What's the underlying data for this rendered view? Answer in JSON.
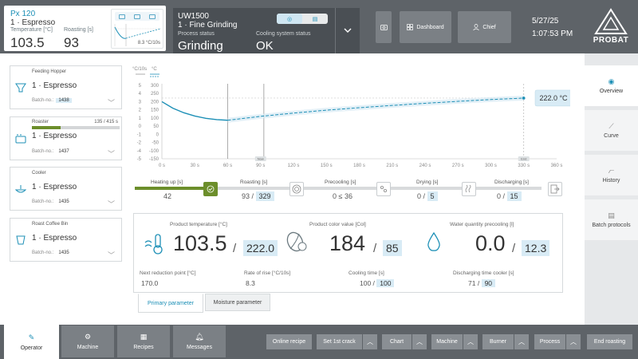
{
  "machine_card": {
    "title": "Px 120",
    "recipe": "1 · Espresso",
    "temp_label": "Temperature [°C]",
    "roast_label": "Roasting [s]",
    "temp_value": "103.5",
    "roast_value": "93",
    "mini_chart_label": "8.3 °C/10s"
  },
  "process_card": {
    "title": "UW1500",
    "subtitle": "1 · Fine Grinding",
    "status_label": "Process status",
    "cooling_label": "Cooling system status",
    "status_value": "Grinding",
    "cooling_value": "OK"
  },
  "topbar": {
    "dashboard": "Dashboard",
    "chief": "Chief",
    "date": "5/27/25",
    "time": "1:07:53 PM",
    "logo": "PROBAT"
  },
  "side_cards": {
    "hopper": {
      "title": "Feeding Hopper",
      "name": "1 · Espresso",
      "batch_label": "Batch-no.:",
      "batch": "1438"
    },
    "roaster": {
      "title": "Roaster",
      "progress_text": "135 / 415 s",
      "progress": 0.325,
      "name": "1 · Espresso",
      "batch_label": "Batch-no.:",
      "batch": "1437"
    },
    "cooler": {
      "title": "Cooler",
      "name": "1 · Espresso",
      "batch_label": "Batch-no.:",
      "batch": "1435"
    },
    "bin": {
      "title": "Roast Coffee Bin",
      "name": "1 · Espresso",
      "batch_label": "Batch-no.:",
      "batch": "1435"
    }
  },
  "chart_data": {
    "type": "line",
    "y_left_label": "°C/10s",
    "y_right_label": "°C",
    "y_left_ticks": [
      "5",
      "4",
      "3",
      "2",
      "1",
      "0",
      "-1",
      "-2",
      "-4",
      "-5"
    ],
    "y_right_ticks": [
      "300",
      "250",
      "200",
      "150",
      "100",
      "50",
      "0",
      "-50",
      "-100",
      "-150"
    ],
    "ylim": [
      -150,
      300
    ],
    "xlim": [
      0,
      360
    ],
    "x_ticks": [
      0,
      30,
      60,
      90,
      120,
      150,
      180,
      210,
      240,
      270,
      300,
      330,
      360
    ],
    "x_tick_labels": [
      "0 s",
      "30 s",
      "60 s",
      "90 s",
      "120 s",
      "150 s",
      "180 s",
      "210 s",
      "240 s",
      "270 s",
      "300 s",
      "330 s",
      "360 s"
    ],
    "x_marker_labels": [
      "Now",
      "End"
    ],
    "x_markers": [
      90,
      330
    ],
    "vertical_lines": [
      60,
      93
    ],
    "actual": {
      "x": [
        0,
        10,
        20,
        30,
        40,
        50,
        60
      ],
      "y": [
        200,
        160,
        132,
        112,
        98,
        90,
        86
      ]
    },
    "planned": {
      "x": [
        60,
        90,
        120,
        150,
        180,
        210,
        240,
        270,
        300,
        330
      ],
      "y": [
        86,
        110,
        130,
        148,
        163,
        177,
        190,
        202,
        213,
        222
      ]
    },
    "target_label": "222.0 °C",
    "target_value": 222
  },
  "steps": {
    "heating": {
      "label": "Heating up [s]",
      "value": "42"
    },
    "roasting": {
      "label": "Roasting [s]",
      "value": "93 /",
      "target": "329"
    },
    "precooling": {
      "label": "Precooling [s]",
      "value": "0 ≤ 36"
    },
    "drying": {
      "label": "Drying [s]",
      "value": "0 /",
      "target": "5"
    },
    "discharging": {
      "label": "Discharging [s]",
      "value": "0 /",
      "target": "15"
    }
  },
  "params": {
    "temp": {
      "label": "Product temperature [°C]",
      "value": "103.5",
      "target": "222.0"
    },
    "color": {
      "label": "Product color value [Col]",
      "value": "184",
      "target": "85"
    },
    "water": {
      "label": "Water quantity precooling [l]",
      "value": "0.0",
      "target": "12.3"
    },
    "reduction": {
      "label": "Next reduction point [°C]",
      "value": "170.0"
    },
    "rise": {
      "label": "Rate of rise [°C/10s]",
      "value": "8.3"
    },
    "cooling": {
      "label": "Cooling time [s]",
      "value": "100 /",
      "target": "100"
    },
    "discharge_cooler": {
      "label": "Discharging time cooler [s]",
      "value": "71 /",
      "target": "90"
    },
    "slash": "/"
  },
  "tabs": {
    "primary": "Primary parameter",
    "moisture": "Moisture parameter"
  },
  "right_nav": {
    "overview": "Overview",
    "curve": "Curve",
    "history": "History",
    "batch": "Batch protocols"
  },
  "bottom": {
    "operator": "Operator",
    "machine": "Machine",
    "recipes": "Recipes",
    "messages": "Messages",
    "online_recipe": "Online recipe",
    "first_crack": "Set 1st crack",
    "chart": "Chart",
    "machine_menu": "Machine",
    "burner": "Burner",
    "process": "Process",
    "end_roasting": "End roasting"
  }
}
